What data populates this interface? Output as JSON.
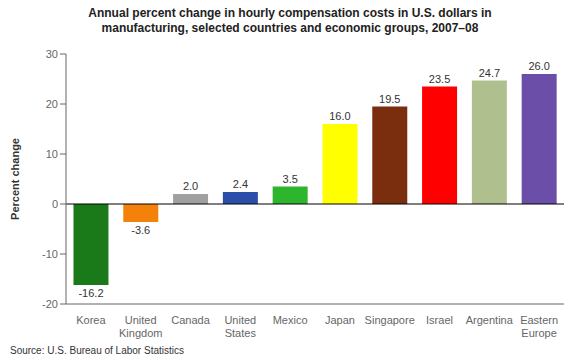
{
  "chart_data": {
    "type": "bar",
    "title": "Annual percent change in hourly compensation costs in U.S. dollars in\nmanufacturing, selected countries and economic groups, 2007–08",
    "ylabel": "Percent change",
    "annotations": [
      "Source: U.S. Bureau of Labor Statistics"
    ],
    "categories": [
      "Korea",
      "United\nKingdom",
      "Canada",
      "United\nStates",
      "Mexico",
      "Japan",
      "Singapore",
      "Israel",
      "Argentina",
      "Eastern\nEurope"
    ],
    "values": [
      -16.2,
      -3.6,
      2.0,
      2.4,
      3.5,
      16.0,
      19.5,
      23.5,
      24.7,
      26.0
    ],
    "value_labels": [
      "-16.2",
      "-3.6",
      "2.0",
      "2.4",
      "3.5",
      "16.0",
      "19.5",
      "23.5",
      "24.7",
      "26.0"
    ],
    "colors": [
      "#1a7a1a",
      "#f4820a",
      "#a0a0a0",
      "#2b4fa8",
      "#2db52d",
      "#ffff00",
      "#7b2e0e",
      "#ff0000",
      "#b0bf8e",
      "#6b4ea8"
    ],
    "ylim": [
      -20,
      30
    ],
    "yticks": [
      -20,
      -10,
      0,
      10,
      20,
      30
    ],
    "data_labels": true,
    "grid": false
  }
}
